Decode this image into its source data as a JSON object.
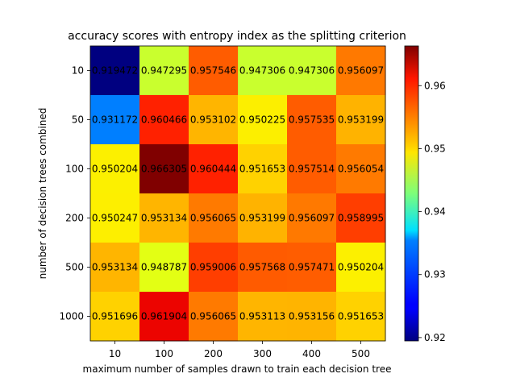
{
  "chart_data": {
    "type": "heatmap",
    "title": "accuracy scores with entropy index as the splitting criterion",
    "xlabel": "maximum number of samples drawn to train each decision tree",
    "ylabel": "number of decision trees combined",
    "x_categories": [
      "10",
      "100",
      "200",
      "300",
      "400",
      "500"
    ],
    "y_categories": [
      "10",
      "50",
      "100",
      "200",
      "500",
      "1000"
    ],
    "values": [
      [
        0.919472,
        0.947295,
        0.957546,
        0.947306,
        0.947306,
        0.956097
      ],
      [
        0.931172,
        0.960466,
        0.953102,
        0.950225,
        0.957535,
        0.953199
      ],
      [
        0.950204,
        0.966305,
        0.960444,
        0.951653,
        0.957514,
        0.956054
      ],
      [
        0.950247,
        0.953134,
        0.956065,
        0.953199,
        0.956097,
        0.958995
      ],
      [
        0.953134,
        0.948787,
        0.959006,
        0.957568,
        0.957471,
        0.950204
      ],
      [
        0.951696,
        0.961904,
        0.956065,
        0.953113,
        0.953156,
        0.951653
      ]
    ],
    "value_labels": [
      [
        "0.919472",
        "0.947295",
        "0.957546",
        "0.947306",
        "0.947306",
        "0.956097"
      ],
      [
        "0.931172",
        "0.960466",
        "0.953102",
        "0.950225",
        "0.957535",
        "0.953199"
      ],
      [
        "0.950204",
        "0.966305",
        "0.960444",
        "0.951653",
        "0.957514",
        "0.956054"
      ],
      [
        "0.950247",
        "0.953134",
        "0.956065",
        "0.953199",
        "0.956097",
        "0.958995"
      ],
      [
        "0.953134",
        "0.948787",
        "0.959006",
        "0.957568",
        "0.957471",
        "0.950204"
      ],
      [
        "0.951696",
        "0.961904",
        "0.956065",
        "0.953113",
        "0.953156",
        "0.951653"
      ]
    ],
    "colormap": "jet",
    "color_range": [
      0.919472,
      0.966305
    ],
    "colorbar_ticks": [
      "0.92",
      "0.93",
      "0.94",
      "0.95",
      "0.96"
    ],
    "grid": false,
    "legend": "colorbar-right"
  }
}
